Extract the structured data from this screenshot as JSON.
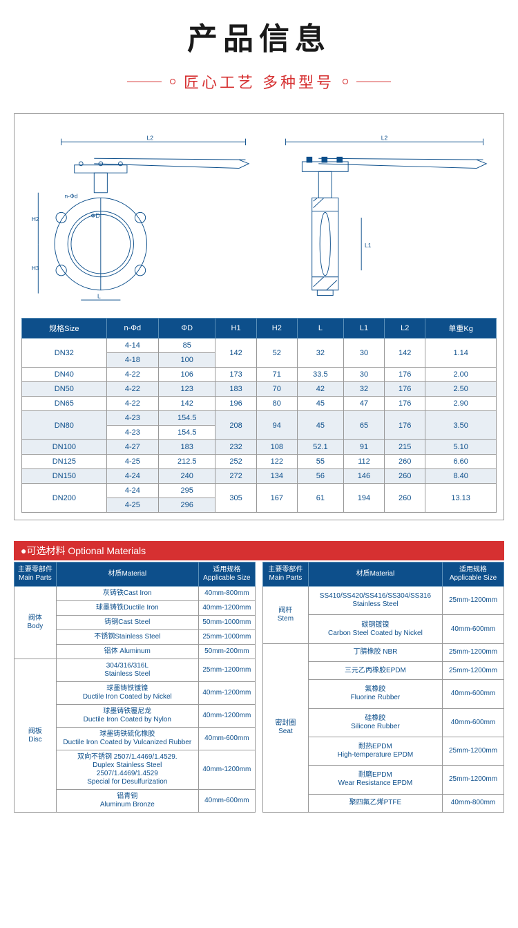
{
  "header": {
    "title": "产品信息",
    "subtitle": "匠心工艺  多种型号"
  },
  "diagram": {
    "labels": [
      "L2",
      "L2",
      "n-Φd",
      "ΦD",
      "H2",
      "H3",
      "L",
      "L1"
    ],
    "stroke": "#0d4f8b",
    "stroke_width": 1
  },
  "spec_table": {
    "headers": [
      "规格Size",
      "n-Φd",
      "ΦD",
      "H1",
      "H2",
      "L",
      "L1",
      "L2",
      "单重Kg"
    ],
    "header_bg": "#0d4f8b",
    "header_color": "#ffffff",
    "cell_color": "#0d4f8b",
    "alt_row_bg": "#e8eef4",
    "border_color": "#999999",
    "rows": [
      {
        "size": "DN32",
        "rowspan": 2,
        "sub": [
          [
            "4-14",
            "85",
            "142",
            "52",
            "32",
            "30",
            "142",
            "1.14"
          ],
          [
            "4-18",
            "100",
            "",
            "",
            "",
            "",
            "",
            ""
          ]
        ]
      },
      {
        "size": "DN40",
        "rowspan": 1,
        "sub": [
          [
            "4-22",
            "106",
            "173",
            "71",
            "33.5",
            "30",
            "176",
            "2.00"
          ]
        ]
      },
      {
        "size": "DN50",
        "rowspan": 1,
        "sub": [
          [
            "4-22",
            "123",
            "183",
            "70",
            "42",
            "32",
            "176",
            "2.50"
          ]
        ]
      },
      {
        "size": "DN65",
        "rowspan": 1,
        "sub": [
          [
            "4-22",
            "142",
            "196",
            "80",
            "45",
            "47",
            "176",
            "2.90"
          ]
        ]
      },
      {
        "size": "DN80",
        "rowspan": 2,
        "sub": [
          [
            "4-23",
            "154.5",
            "208",
            "94",
            "45",
            "65",
            "176",
            "3.50"
          ],
          [
            "4-23",
            "154.5",
            "",
            "",
            "",
            "",
            "",
            ""
          ]
        ]
      },
      {
        "size": "DN100",
        "rowspan": 1,
        "sub": [
          [
            "4-27",
            "183",
            "232",
            "108",
            "52.1",
            "91",
            "215",
            "5.10"
          ]
        ]
      },
      {
        "size": "DN125",
        "rowspan": 1,
        "sub": [
          [
            "4-25",
            "212.5",
            "252",
            "122",
            "55",
            "112",
            "260",
            "6.60"
          ]
        ]
      },
      {
        "size": "DN150",
        "rowspan": 1,
        "sub": [
          [
            "4-24",
            "240",
            "272",
            "134",
            "56",
            "146",
            "260",
            "8.40"
          ]
        ]
      },
      {
        "size": "DN200",
        "rowspan": 2,
        "sub": [
          [
            "4-24",
            "295",
            "305",
            "167",
            "61",
            "194",
            "260",
            "13.13"
          ],
          [
            "4-25",
            "296",
            "",
            "",
            "",
            "",
            "",
            ""
          ]
        ]
      }
    ]
  },
  "materials": {
    "title": "●可选材料 Optional Materials",
    "title_bg": "#d63031",
    "headers": [
      "主要零部件\nMain Parts",
      "材质Material",
      "适用规格\nApplicable Size"
    ],
    "left": [
      {
        "part": "阀体\nBody",
        "rowspan": 5,
        "rows": [
          [
            "灰铸铁Cast Iron",
            "40mm-800mm"
          ],
          [
            "球墨铸铁Ductile Iron",
            "40mm-1200mm"
          ],
          [
            "铸钢Cast Steel",
            "50mm-1000mm"
          ],
          [
            "不锈钢Stainless Steel",
            "25mm-1000mm"
          ],
          [
            "铝体 Aluminum",
            "50mm-200mm"
          ]
        ]
      },
      {
        "part": "阀板\nDisc",
        "rowspan": 6,
        "rows": [
          [
            "304/316/316L\nStainless Steel",
            "25mm-1200mm"
          ],
          [
            "球墨铸铁镀镍\nDuctile Iron Coated by Nickel",
            "40mm-1200mm"
          ],
          [
            "球墨铸铁覆尼龙\nDuctile Iron Coated by Nylon",
            "40mm-1200mm"
          ],
          [
            "球墨铸铁硫化橡胶\nDuctile Iron Coated by Vulcanized Rubber",
            "40mm-600mm"
          ],
          [
            "双向不锈钢 2507/1.4469/1.4529.\nDuplex Stainless Steel\n2507/1.4469/1.4529\nSpecial for Desulfurization",
            "40mm-1200mm"
          ],
          [
            "铝青铜\nAluminum Bronze",
            "40mm-600mm"
          ]
        ]
      }
    ],
    "right": [
      {
        "part": "阀杆\nStem",
        "rowspan": 2,
        "rows": [
          [
            "SS410/SS420/SS416/SS304/SS316\nStainless Steel",
            "25mm-1200mm"
          ],
          [
            "碳钢镀镍\nCarbon Steel Coated by Nickel",
            "40mm-600mm"
          ]
        ]
      },
      {
        "part": "密封圈\nSeat",
        "rowspan": 7,
        "rows": [
          [
            "丁腈橡胶 NBR",
            "25mm-1200mm"
          ],
          [
            "三元乙丙橡胶EPDM",
            "25mm-1200mm"
          ],
          [
            "氟橡胶\nFluorine Rubber",
            "40mm-600mm"
          ],
          [
            "硅橡胶\nSilicone Rubber",
            "40mm-600mm"
          ],
          [
            "耐热EPDM\nHigh-temperature EPDM",
            "25mm-1200mm"
          ],
          [
            "耐磨EPDM\nWear Resistance EPDM",
            "25mm-1200mm"
          ],
          [
            "聚四氟乙烯PTFE",
            "40mm-800mm"
          ]
        ]
      }
    ]
  }
}
